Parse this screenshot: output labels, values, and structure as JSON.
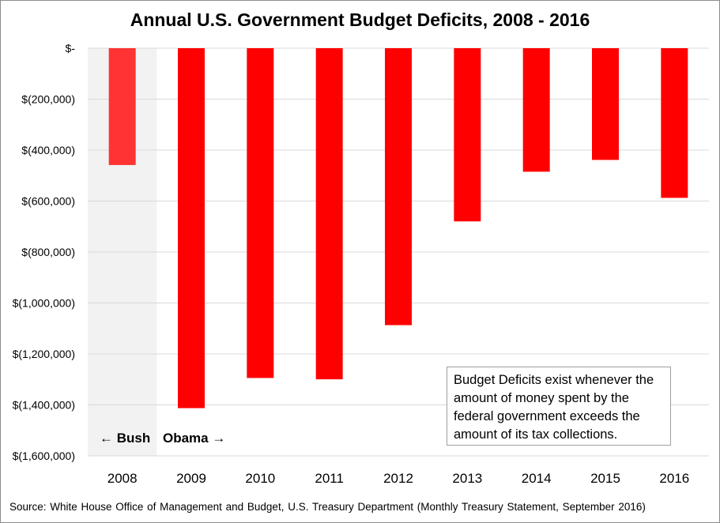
{
  "chart_data": {
    "type": "bar",
    "title": "Annual U.S. Government Budget Deficits, 2008 - 2016",
    "categories": [
      "2008",
      "2009",
      "2010",
      "2011",
      "2012",
      "2013",
      "2014",
      "2015",
      "2016"
    ],
    "values": [
      -458553,
      -1412688,
      -1294373,
      -1299599,
      -1086963,
      -679775,
      -484793,
      -438496,
      -587412
    ],
    "ylim": [
      -1600000,
      0
    ],
    "yticks": [
      0,
      -200000,
      -400000,
      -600000,
      -800000,
      -1000000,
      -1200000,
      -1400000,
      -1600000
    ],
    "ytick_labels": [
      "$-",
      "$(200,000)",
      "$(400,000)",
      "$(600,000)",
      "$(800,000)",
      "$(1,000,000)",
      "$(1,200,000)",
      "$(1,400,000)",
      "$(1,600,000)"
    ],
    "xlabel": "",
    "ylabel": "",
    "grid": true,
    "colors": {
      "bar": "#ff0000",
      "bar_highlight": "#ff3333",
      "highlight_band": "#f2f2f2",
      "gridline": "#d9d9d9"
    },
    "highlight_category": "2008",
    "annotations": {
      "bush_label": "← Bush",
      "obama_label": "Obama →",
      "note": "Budget Deficits exist whenever the amount of money spent by the federal government exceeds the amount of its tax collections."
    },
    "source": "Source: White House Office of Management and Budget, U.S. Treasury Department (Monthly Treasury Statement, September 2016)"
  }
}
